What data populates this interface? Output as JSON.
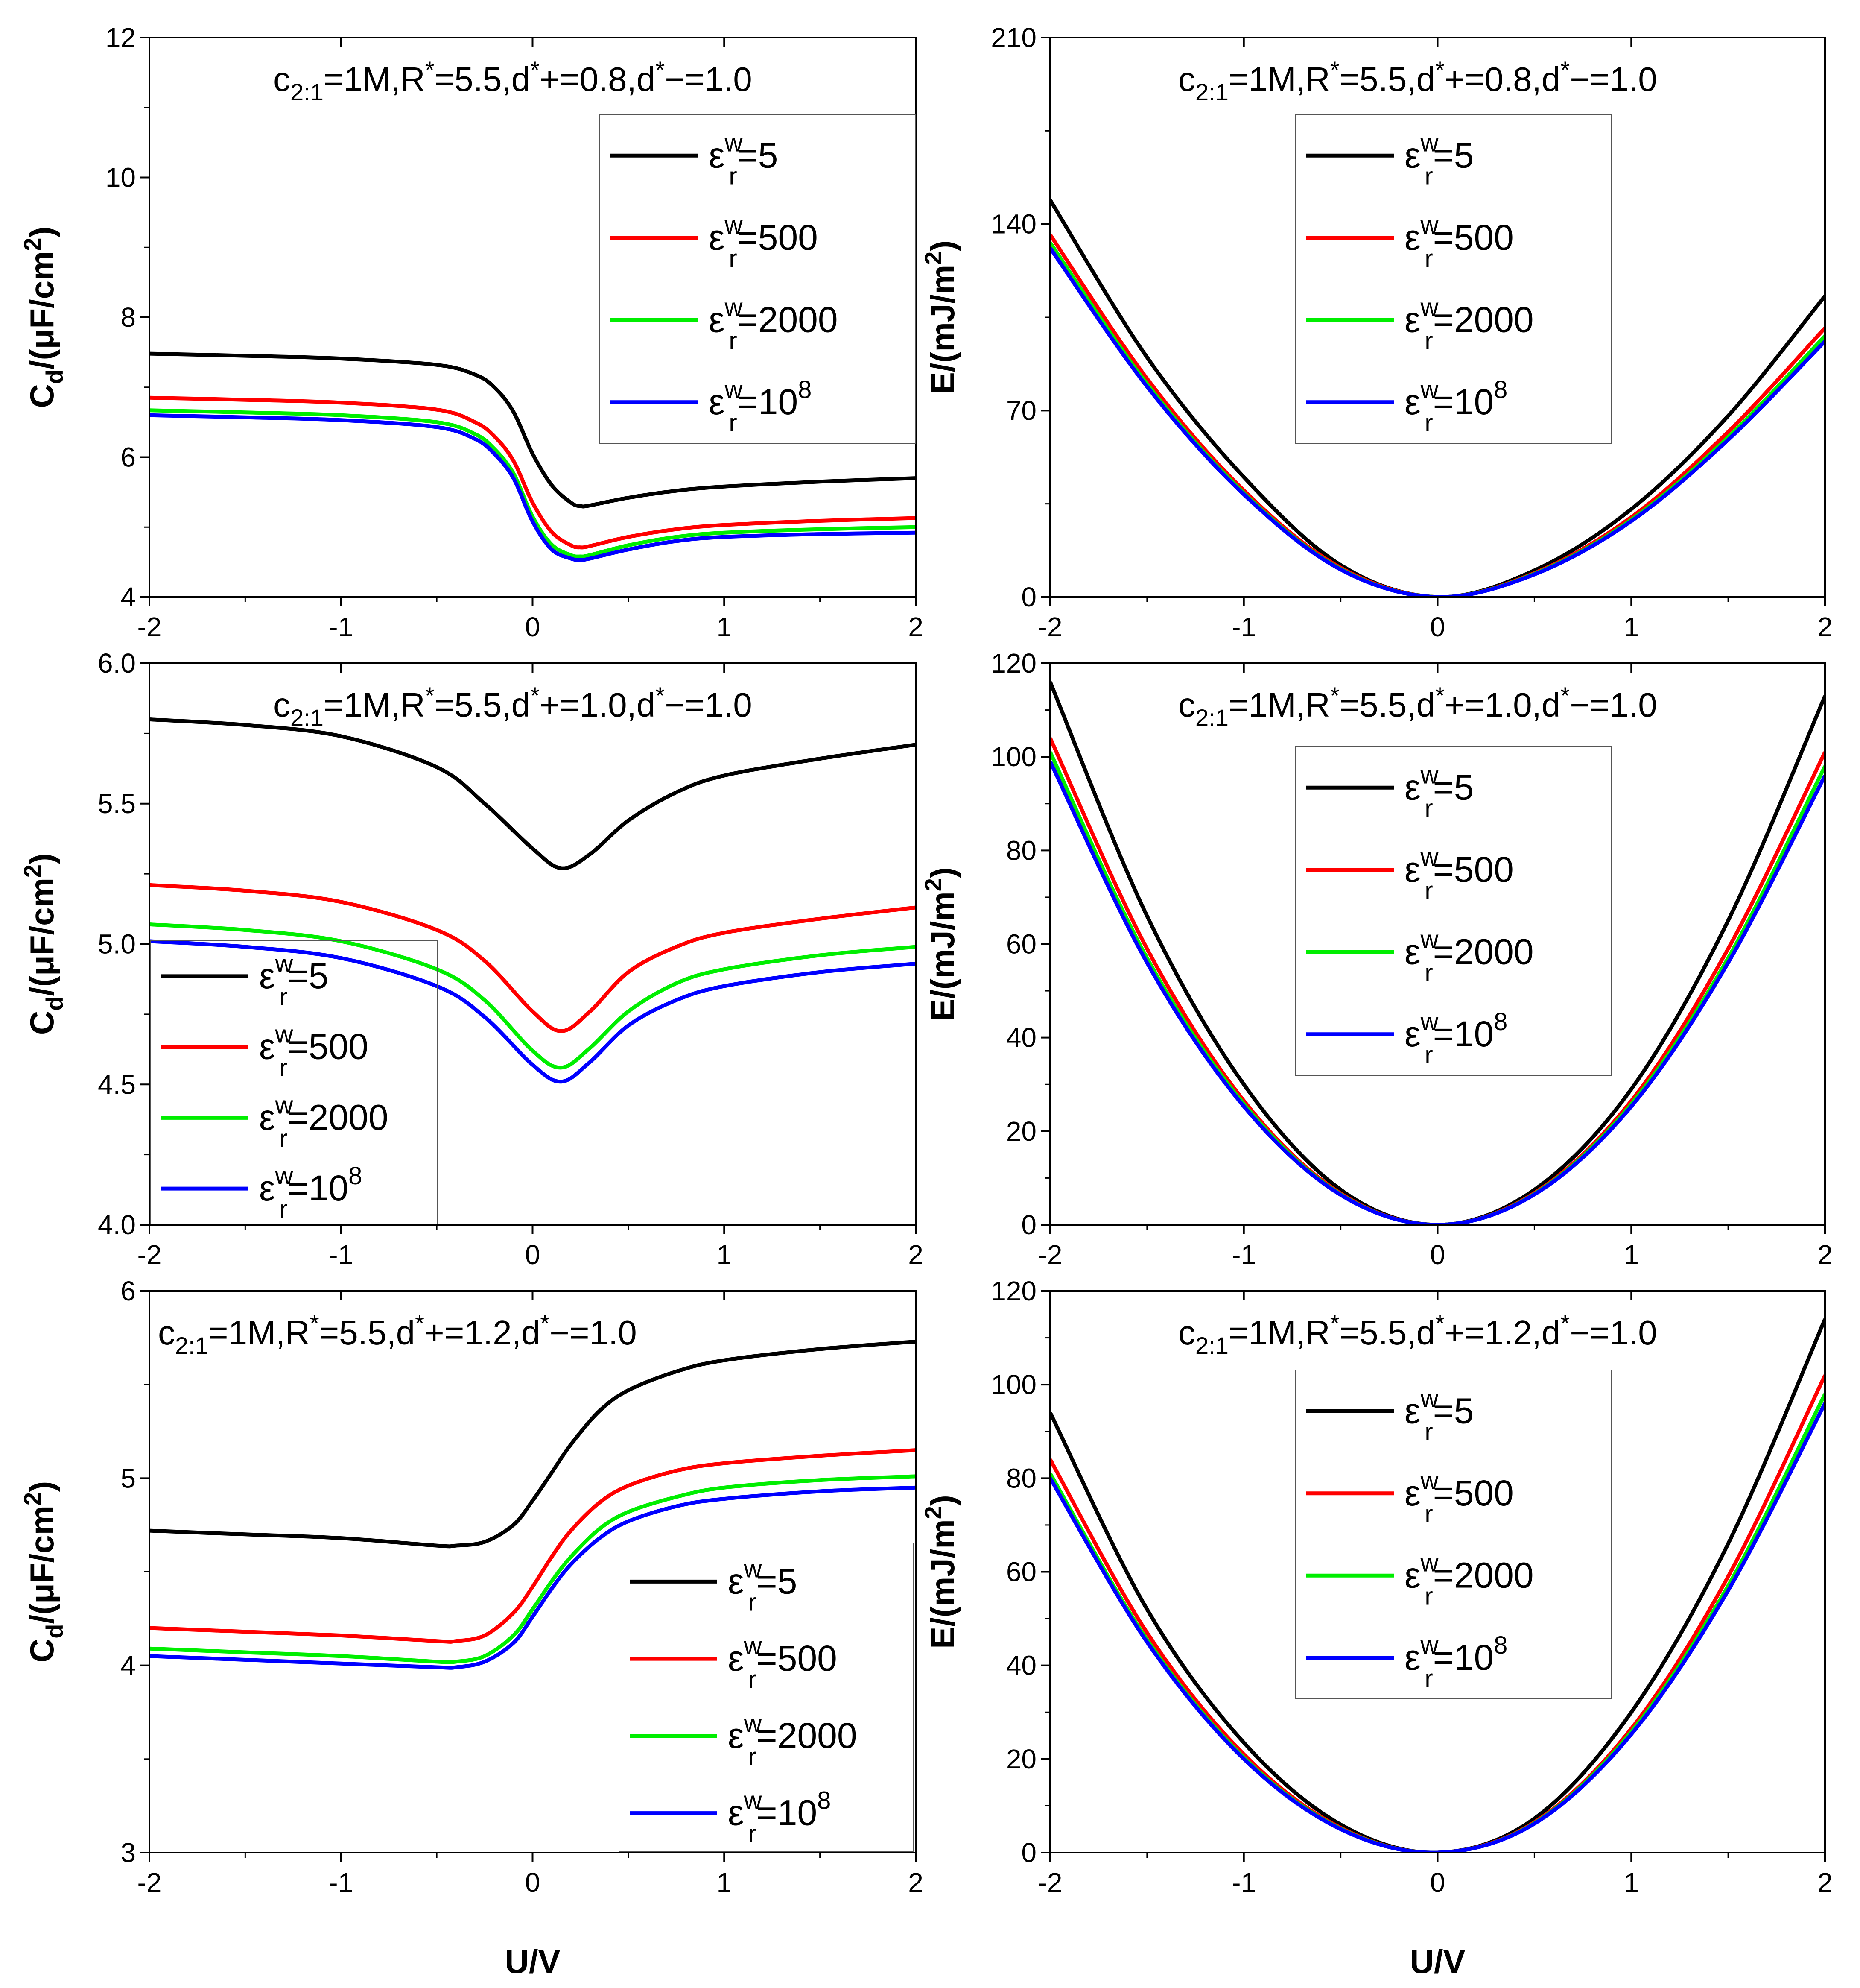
{
  "figure": {
    "xlabel": "U/V"
  },
  "colors": {
    "eps_5": "#000000",
    "eps_500": "#ff0000",
    "eps_2000": "#00ee00",
    "eps_1e8": "#0000ff"
  },
  "legend_entries": [
    {
      "eps": "ε",
      "sup": "w",
      "sub": "r",
      "value": "=5",
      "exp": ""
    },
    {
      "eps": "ε",
      "sup": "w",
      "sub": "r",
      "value": "=500",
      "exp": ""
    },
    {
      "eps": "ε",
      "sup": "w",
      "sub": "r",
      "value": "=2000",
      "exp": ""
    },
    {
      "eps": "ε",
      "sup": "w",
      "sub": "r",
      "value": "=10",
      "exp": "8"
    }
  ],
  "chart_data": [
    {
      "type": "line",
      "panel": "top-left",
      "title": "c2:1=1M,R*=5.5,d*+=0.8,d*−=1.0",
      "title_parts": {
        "c": "c",
        "c_sub": "2:1",
        "p1": "=1M,R",
        "s1": "*",
        "p2": "=5.5,d",
        "s2": "*",
        "p3": "+=0.8,d",
        "s3": "*",
        "p4": "−=1.0"
      },
      "ylabel": "Cd/(μF/cm2)",
      "ylabel_parts": {
        "a": "C",
        "a_sub": "d",
        "b": "/(μF/cm",
        "b_sup": "2",
        "c": ")"
      },
      "xlim": [
        -2,
        2
      ],
      "ylim": [
        4,
        12
      ],
      "xticks": [
        "-2",
        "-1",
        "0",
        "1",
        "2"
      ],
      "yticks": [
        "4",
        "6",
        "8",
        "10",
        "12"
      ],
      "legend_position": "top-right",
      "x": [
        -2,
        -1.5,
        -1,
        -0.5,
        -0.3,
        -0.2,
        -0.1,
        0,
        0.1,
        0.2,
        0.25,
        0.3,
        0.5,
        0.75,
        1,
        1.5,
        2
      ],
      "series": [
        {
          "name": "εwr=5",
          "color_key": "eps_5",
          "values": [
            7.48,
            7.45,
            7.41,
            7.32,
            7.18,
            7.0,
            6.65,
            6.05,
            5.6,
            5.35,
            5.3,
            5.31,
            5.42,
            5.52,
            5.58,
            5.65,
            5.7
          ]
        },
        {
          "name": "εwr=500",
          "color_key": "eps_500",
          "values": [
            6.85,
            6.82,
            6.78,
            6.68,
            6.5,
            6.3,
            5.95,
            5.35,
            4.93,
            4.74,
            4.71,
            4.73,
            4.86,
            4.97,
            5.03,
            5.09,
            5.13
          ]
        },
        {
          "name": "εwr=2000",
          "color_key": "eps_2000",
          "values": [
            6.67,
            6.64,
            6.6,
            6.5,
            6.33,
            6.12,
            5.77,
            5.15,
            4.75,
            4.6,
            4.58,
            4.6,
            4.74,
            4.86,
            4.92,
            4.97,
            5.0
          ]
        },
        {
          "name": "εwr=10^8",
          "color_key": "eps_1e8",
          "values": [
            6.6,
            6.57,
            6.53,
            6.43,
            6.26,
            6.05,
            5.7,
            5.08,
            4.68,
            4.55,
            4.53,
            4.55,
            4.68,
            4.8,
            4.86,
            4.9,
            4.92
          ]
        }
      ]
    },
    {
      "type": "line",
      "panel": "top-right",
      "title": "c2:1=1M,R*=5.5,d*+=0.8,d*−=1.0",
      "title_parts": {
        "c": "c",
        "c_sub": "2:1",
        "p1": "=1M,R",
        "s1": "*",
        "p2": "=5.5,d",
        "s2": "*",
        "p3": "+=0.8,d",
        "s3": "*",
        "p4": "−=1.0"
      },
      "ylabel": "E/(mJ/m2)",
      "ylabel_parts": {
        "a": "E/(mJ/m",
        "a_sub": "",
        "b": "",
        "b_sup": "2",
        "c": ")"
      },
      "xlim": [
        -2,
        2
      ],
      "ylim": [
        0,
        210
      ],
      "xticks": [
        "-2",
        "-1",
        "0",
        "1",
        "2"
      ],
      "yticks": [
        "0",
        "70",
        "140",
        "210"
      ],
      "legend_position": "top-center",
      "x": [
        -2,
        -1.5,
        -1,
        -0.5,
        0,
        0.5,
        1,
        1.5,
        2
      ],
      "series": [
        {
          "name": "εwr=5",
          "color_key": "eps_5",
          "values": [
            149,
            90,
            45,
            12,
            0,
            10,
            33,
            68,
            113
          ]
        },
        {
          "name": "εwr=500",
          "color_key": "eps_500",
          "values": [
            136,
            82,
            40,
            11,
            0,
            9,
            30,
            62,
            101
          ]
        },
        {
          "name": "εwr=2000",
          "color_key": "eps_2000",
          "values": [
            133,
            80,
            39,
            10.5,
            0,
            8.7,
            29,
            60,
            98
          ]
        },
        {
          "name": "εwr=10^8",
          "color_key": "eps_1e8",
          "values": [
            131,
            79,
            38.5,
            10.3,
            0,
            8.5,
            28.5,
            59,
            96
          ]
        }
      ]
    },
    {
      "type": "line",
      "panel": "middle-left",
      "title": "c2:1=1M,R*=5.5,d*+=1.0,d*−=1.0",
      "title_parts": {
        "c": "c",
        "c_sub": "2:1",
        "p1": "=1M,R",
        "s1": "*",
        "p2": "=5.5,d",
        "s2": "*",
        "p3": "+=1.0,d",
        "s3": "*",
        "p4": "−=1.0"
      },
      "ylabel": "Cd/(μF/cm2)",
      "ylabel_parts": {
        "a": "C",
        "a_sub": "d",
        "b": "/(μF/cm",
        "b_sup": "2",
        "c": ")"
      },
      "xlim": [
        -2,
        2
      ],
      "ylim": [
        4.0,
        6.0
      ],
      "xticks": [
        "-2",
        "-1",
        "0",
        "1",
        "2"
      ],
      "yticks": [
        "4.0",
        "4.5",
        "5.0",
        "5.5",
        "6.0"
      ],
      "legend_position": "bottom-left",
      "x": [
        -2,
        -1.5,
        -1,
        -0.5,
        -0.25,
        0,
        0.15,
        0.3,
        0.5,
        0.75,
        1,
        1.5,
        2
      ],
      "series": [
        {
          "name": "εwr=5",
          "color_key": "eps_5",
          "values": [
            5.8,
            5.78,
            5.74,
            5.63,
            5.5,
            5.34,
            5.27,
            5.32,
            5.44,
            5.54,
            5.6,
            5.66,
            5.71
          ]
        },
        {
          "name": "εwr=500",
          "color_key": "eps_500",
          "values": [
            5.21,
            5.19,
            5.15,
            5.05,
            4.94,
            4.76,
            4.69,
            4.76,
            4.9,
            4.99,
            5.04,
            5.09,
            5.13
          ]
        },
        {
          "name": "εwr=2000",
          "color_key": "eps_2000",
          "values": [
            5.07,
            5.05,
            5.01,
            4.91,
            4.8,
            4.62,
            4.56,
            4.63,
            4.76,
            4.86,
            4.91,
            4.96,
            4.99
          ]
        },
        {
          "name": "εwr=10^8",
          "color_key": "eps_1e8",
          "values": [
            5.01,
            4.99,
            4.95,
            4.85,
            4.74,
            4.57,
            4.51,
            4.58,
            4.71,
            4.8,
            4.85,
            4.9,
            4.93
          ]
        }
      ]
    },
    {
      "type": "line",
      "panel": "middle-right",
      "title": "c2:1=1M,R*=5.5,d*+=1.0,d*−=1.0",
      "title_parts": {
        "c": "c",
        "c_sub": "2:1",
        "p1": "=1M,R",
        "s1": "*",
        "p2": "=5.5,d",
        "s2": "*",
        "p3": "+=1.0,d",
        "s3": "*",
        "p4": "−=1.0"
      },
      "ylabel": "E/(mJ/m2)",
      "ylabel_parts": {
        "a": "E/(mJ/m",
        "a_sub": "",
        "b": "",
        "b_sup": "2",
        "c": ")"
      },
      "xlim": [
        -2,
        2
      ],
      "ylim": [
        0,
        120
      ],
      "xticks": [
        "-2",
        "-1",
        "0",
        "1",
        "2"
      ],
      "yticks": [
        "0",
        "20",
        "40",
        "60",
        "80",
        "100",
        "120"
      ],
      "legend_position": "top-center",
      "x": [
        -2,
        -1.5,
        -1,
        -0.5,
        0,
        0.5,
        1,
        1.5,
        2
      ],
      "series": [
        {
          "name": "εwr=5",
          "color_key": "eps_5",
          "values": [
            116,
            66,
            30,
            7.5,
            0,
            7.5,
            29,
            65,
            113
          ]
        },
        {
          "name": "εwr=500",
          "color_key": "eps_500",
          "values": [
            104,
            59,
            26.5,
            6.7,
            0,
            6.8,
            26.5,
            59,
            101
          ]
        },
        {
          "name": "εwr=2000",
          "color_key": "eps_2000",
          "values": [
            101,
            57,
            25.8,
            6.5,
            0,
            6.6,
            25.8,
            57,
            98
          ]
        },
        {
          "name": "εwr=10^8",
          "color_key": "eps_1e8",
          "values": [
            99,
            56,
            25.3,
            6.4,
            0,
            6.5,
            25.3,
            56,
            96
          ]
        }
      ]
    },
    {
      "type": "line",
      "panel": "bottom-left",
      "title": "c2:1=1M,R*=5.5,d*+=1.2,d*−=1.0",
      "title_parts": {
        "c": "c",
        "c_sub": "2:1",
        "p1": "=1M,R",
        "s1": "*",
        "p2": "=5.5,d",
        "s2": "*",
        "p3": "+=1.2,d",
        "s3": "*",
        "p4": "−=1.0"
      },
      "ylabel": "Cd/(μF/cm2)",
      "ylabel_parts": {
        "a": "C",
        "a_sub": "d",
        "b": "/(μF/cm",
        "b_sup": "2",
        "c": ")"
      },
      "xlim": [
        -2,
        2
      ],
      "ylim": [
        3,
        6
      ],
      "xticks": [
        "-2",
        "-1",
        "0",
        "1",
        "2"
      ],
      "yticks": [
        "3",
        "4",
        "5",
        "6"
      ],
      "legend_position": "bottom-right",
      "x": [
        -2,
        -1.5,
        -1,
        -0.5,
        -0.4,
        -0.25,
        -0.1,
        0,
        0.1,
        0.2,
        0.35,
        0.5,
        0.75,
        1,
        1.5,
        2
      ],
      "series": [
        {
          "name": "εwr=5",
          "color_key": "eps_5",
          "values": [
            4.72,
            4.7,
            4.68,
            4.64,
            4.64,
            4.66,
            4.75,
            4.88,
            5.03,
            5.18,
            5.36,
            5.47,
            5.57,
            5.63,
            5.69,
            5.73
          ]
        },
        {
          "name": "εwr=500",
          "color_key": "eps_500",
          "values": [
            4.2,
            4.18,
            4.16,
            4.13,
            4.13,
            4.16,
            4.28,
            4.42,
            4.58,
            4.72,
            4.87,
            4.96,
            5.04,
            5.08,
            5.12,
            5.15
          ]
        },
        {
          "name": "εwr=2000",
          "color_key": "eps_2000",
          "values": [
            4.09,
            4.07,
            4.05,
            4.02,
            4.02,
            4.05,
            4.16,
            4.3,
            4.45,
            4.58,
            4.73,
            4.82,
            4.9,
            4.95,
            4.99,
            5.01
          ]
        },
        {
          "name": "εwr=10^8",
          "color_key": "eps_1e8",
          "values": [
            4.05,
            4.03,
            4.01,
            3.99,
            3.99,
            4.02,
            4.12,
            4.26,
            4.41,
            4.54,
            4.68,
            4.77,
            4.85,
            4.89,
            4.93,
            4.95
          ]
        }
      ]
    },
    {
      "type": "line",
      "panel": "bottom-right",
      "title": "c2:1=1M,R*=5.5,d*+=1.2,d*−=1.0",
      "title_parts": {
        "c": "c",
        "c_sub": "2:1",
        "p1": "=1M,R",
        "s1": "*",
        "p2": "=5.5,d",
        "s2": "*",
        "p3": "+=1.2,d",
        "s3": "*",
        "p4": "−=1.0"
      },
      "ylabel": "E/(mJ/m2)",
      "ylabel_parts": {
        "a": "E/(mJ/m",
        "a_sub": "",
        "b": "",
        "b_sup": "2",
        "c": ")"
      },
      "xlim": [
        -2,
        2
      ],
      "ylim": [
        0,
        120
      ],
      "xticks": [
        "-2",
        "-1",
        "0",
        "1",
        "2"
      ],
      "yticks": [
        "0",
        "20",
        "40",
        "60",
        "80",
        "100",
        "120"
      ],
      "legend_position": "top-center",
      "x": [
        -2,
        -1.5,
        -1,
        -0.5,
        0,
        0.5,
        1,
        1.5,
        2
      ],
      "series": [
        {
          "name": "εwr=5",
          "color_key": "eps_5",
          "values": [
            94,
            52,
            23.5,
            6,
            0,
            7.3,
            30,
            66,
            114
          ]
        },
        {
          "name": "εwr=500",
          "color_key": "eps_500",
          "values": [
            84,
            47,
            21,
            5.3,
            0,
            6.5,
            26.5,
            59,
            102
          ]
        },
        {
          "name": "εwr=2000",
          "color_key": "eps_2000",
          "values": [
            81,
            45.5,
            20.3,
            5.1,
            0,
            6.3,
            25.8,
            57,
            98
          ]
        },
        {
          "name": "εwr=10^8",
          "color_key": "eps_1e8",
          "values": [
            80,
            45,
            20,
            5,
            0,
            6.2,
            25.3,
            56,
            96
          ]
        }
      ]
    }
  ]
}
